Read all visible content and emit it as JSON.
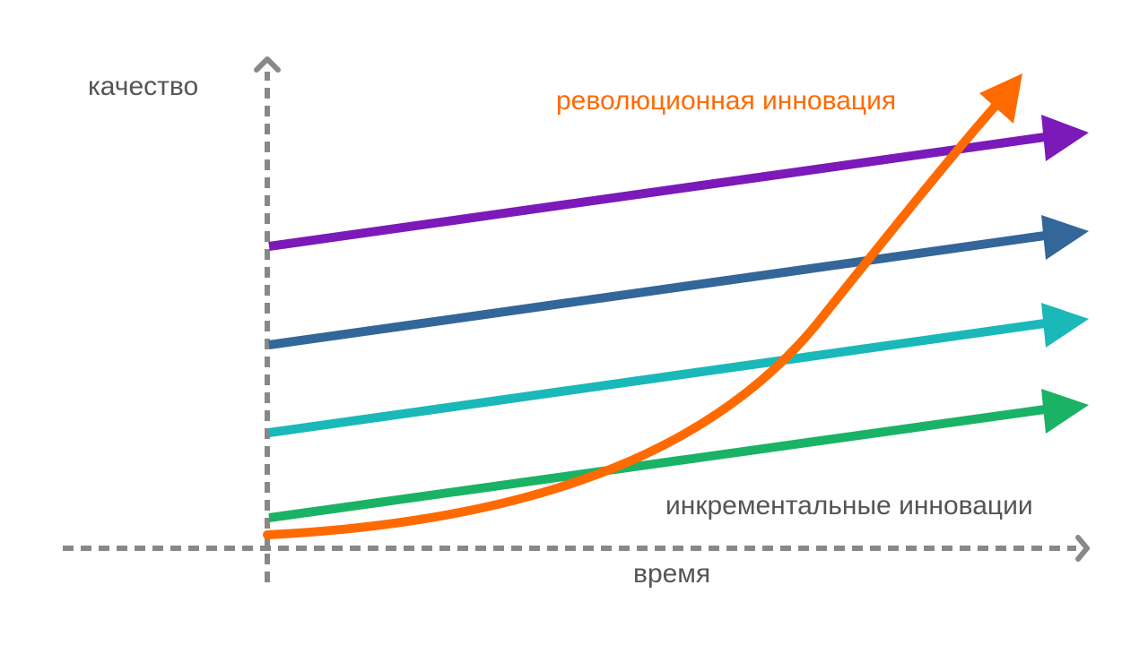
{
  "diagram": {
    "y_axis_label": "качество",
    "x_axis_label": "время",
    "revolutionary_label": "революционная инновация",
    "incremental_label": "инкрементальные инновации"
  },
  "colors": {
    "axis": "#888888",
    "axis_label": "#555555",
    "purple": "#7b1ab8",
    "blue": "#336699",
    "teal": "#1ab8b8",
    "green": "#1ab366",
    "orange": "#ff6a00"
  }
}
